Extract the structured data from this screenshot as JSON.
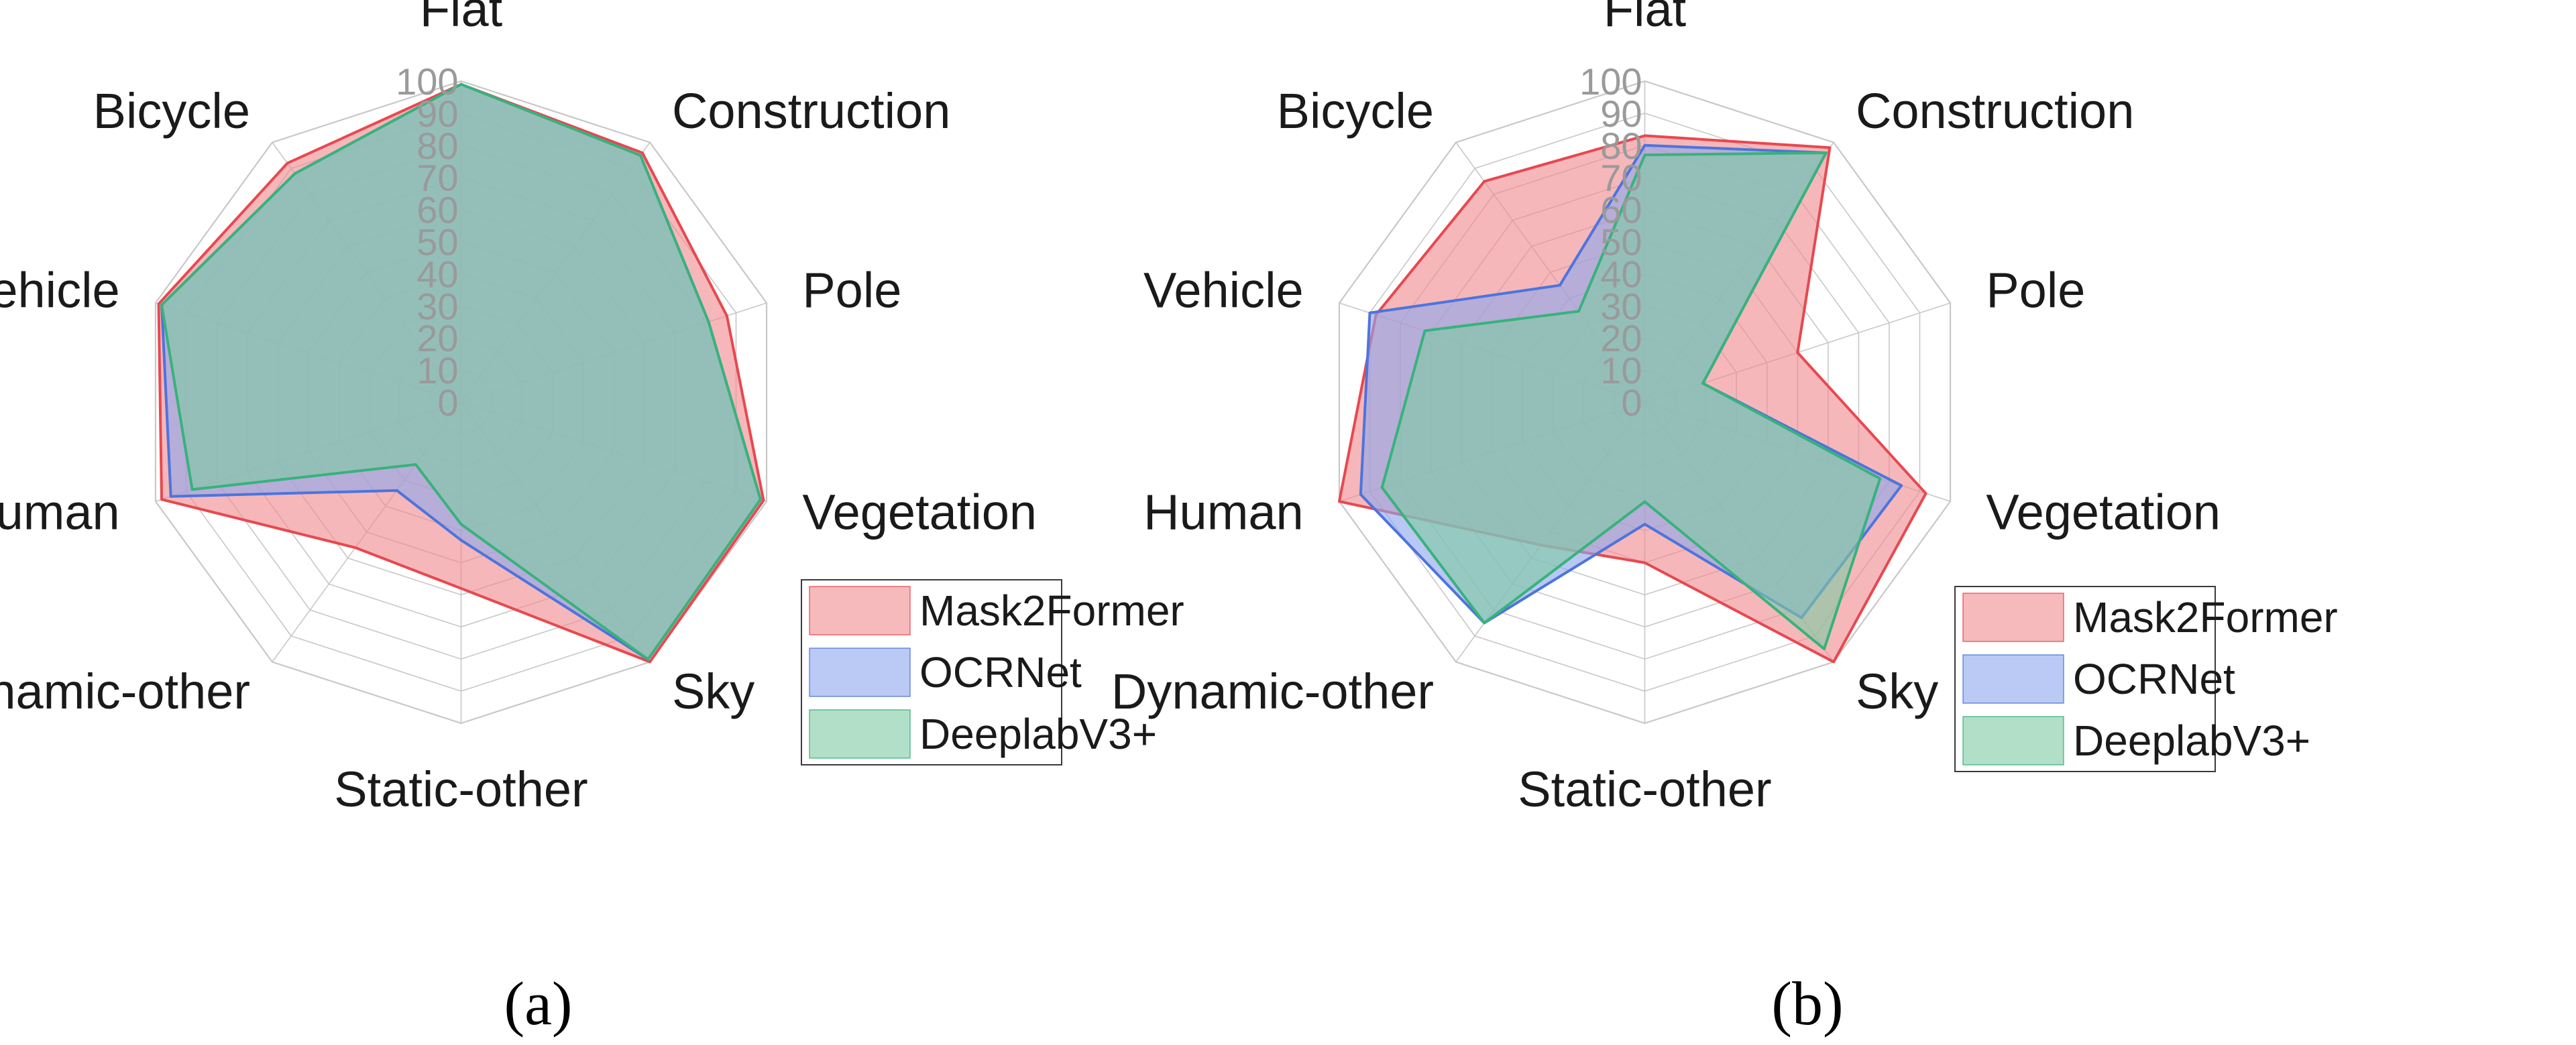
{
  "chart_data": [
    {
      "type": "radar",
      "panel_label": "a",
      "categories": [
        "Flat",
        "Construction",
        "Pole",
        "Vegetation",
        "Sky",
        "Static-other",
        "Dynamic-other",
        "Human",
        "Vehicle",
        "Bicycle"
      ],
      "ticks": [
        "0",
        "10",
        "20",
        "30",
        "40",
        "50",
        "60",
        "70",
        "80",
        "90",
        "100"
      ],
      "rlim": [
        0,
        100
      ],
      "legend_position": "bottom-right",
      "series": [
        {
          "name": "Mask2Former",
          "values": [
            99,
            96,
            87,
            99,
            100,
            58,
            56,
            98,
            99,
            92
          ],
          "color": "#e8484f",
          "fill": "#f08a8f"
        },
        {
          "name": "OCRNet",
          "values": [
            99,
            95,
            81,
            98,
            99,
            43,
            34,
            95,
            98,
            88
          ],
          "color": "#4d74dd",
          "fill": "#8ea6ec"
        },
        {
          "name": "DeeplabV3+",
          "values": [
            99,
            95,
            81,
            98,
            99,
            38,
            24,
            88,
            98,
            88
          ],
          "color": "#38b27c",
          "fill": "#7fc9a3"
        }
      ]
    },
    {
      "type": "radar",
      "panel_label": "b",
      "categories": [
        "Flat",
        "Construction",
        "Pole",
        "Vegetation",
        "Sky",
        "Static-other",
        "Dynamic-other",
        "Human",
        "Vehicle",
        "Bicycle"
      ],
      "ticks": [
        "0",
        "10",
        "20",
        "30",
        "40",
        "50",
        "60",
        "70",
        "80",
        "90",
        "100"
      ],
      "rlim": [
        0,
        100
      ],
      "legend_position": "bottom-right",
      "series": [
        {
          "name": "Mask2Former",
          "values": [
            83,
            98,
            50,
            92,
            100,
            50,
            55,
            100,
            88,
            85
          ],
          "color": "#e8484f",
          "fill": "#f08a8f"
        },
        {
          "name": "OCRNet",
          "values": [
            80,
            96,
            19,
            84,
            83,
            38,
            85,
            93,
            90,
            45
          ],
          "color": "#4d74dd",
          "fill": "#8ea6ec"
        },
        {
          "name": "DeeplabV3+",
          "values": [
            77,
            96,
            19,
            77,
            95,
            31,
            85,
            86,
            72,
            35
          ],
          "color": "#38b27c",
          "fill": "#7fc9a3"
        }
      ]
    }
  ],
  "captions": [
    "(a)",
    "(b)"
  ]
}
